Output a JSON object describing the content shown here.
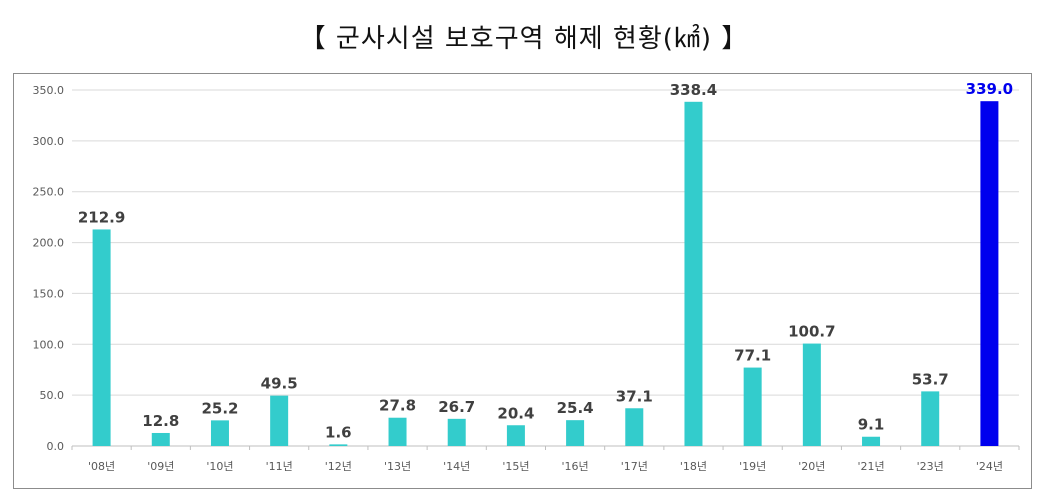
{
  "title": "【 군사시설 보호구역 해제 현황(㎢) 】",
  "chart_data": {
    "type": "bar",
    "title": "【 군사시설 보호구역 해제 현황(㎢) 】",
    "xlabel": "",
    "ylabel": "",
    "ylim": [
      0,
      350
    ],
    "yticks": [
      "0.0",
      "50.0",
      "100.0",
      "150.0",
      "200.0",
      "250.0",
      "300.0",
      "350.0"
    ],
    "grid": true,
    "categories": [
      "'08년",
      "'09년",
      "'10년",
      "'11년",
      "'12년",
      "'13년",
      "'14년",
      "'15년",
      "'16년",
      "'17년",
      "'18년",
      "'19년",
      "'20년",
      "'21년",
      "'23년",
      "'24년"
    ],
    "values": [
      212.9,
      12.8,
      25.2,
      49.5,
      1.6,
      27.8,
      26.7,
      20.4,
      25.4,
      37.1,
      338.4,
      77.1,
      100.7,
      9.1,
      53.7,
      339.0
    ],
    "value_labels": [
      "212.9",
      "12.8",
      "25.2",
      "49.5",
      "1.6",
      "27.8",
      "26.7",
      "20.4",
      "25.4",
      "37.1",
      "338.4",
      "77.1",
      "100.7",
      "9.1",
      "53.7",
      "339.0"
    ],
    "colors": {
      "bar": "#33CCCC",
      "highlight_bar": "#0000EE",
      "label": "#404040",
      "highlight_label": "#0000EE",
      "grid": "#D9D9D9",
      "axis": "#BFBFBF",
      "tick_text": "#595959"
    },
    "highlight_index": 15
  }
}
